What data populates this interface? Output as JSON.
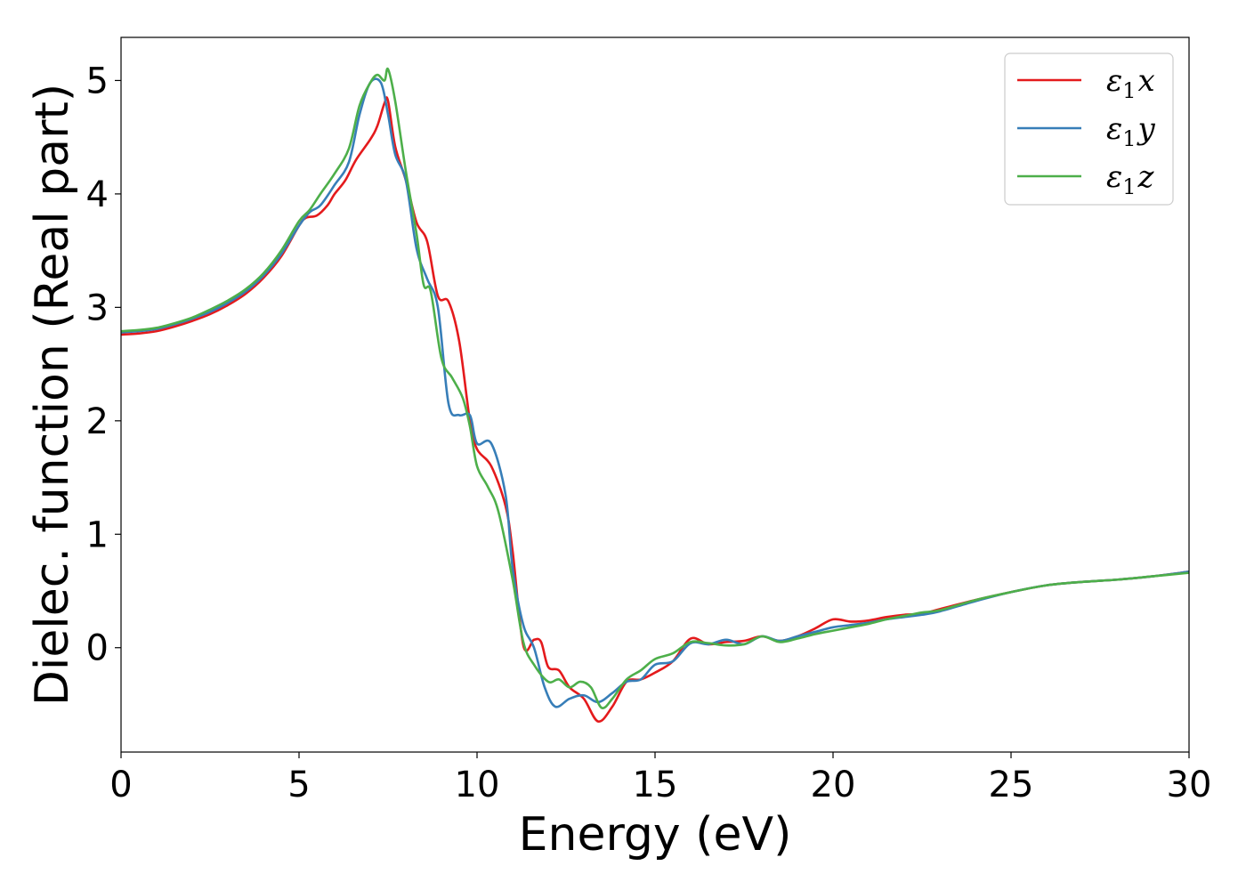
{
  "chart_data": {
    "type": "line",
    "title": "",
    "xlabel": "Energy (eV)",
    "ylabel": "Dielec. function (Real part)",
    "xlim": [
      0,
      30
    ],
    "ylim": [
      -0.92,
      5.38
    ],
    "xticks": [
      0,
      5,
      10,
      15,
      20,
      25,
      30
    ],
    "xtick_labels": [
      "0",
      "5",
      "10",
      "15",
      "20",
      "25",
      "30"
    ],
    "yticks": [
      0,
      1,
      2,
      3,
      4,
      5
    ],
    "ytick_labels": [
      "0",
      "1",
      "2",
      "3",
      "4",
      "5"
    ],
    "grid": false,
    "legend_position": "top-right",
    "series": [
      {
        "name": "ε₁x",
        "legend_base": "ε",
        "legend_sub": "1",
        "legend_var": "x",
        "color": "#e41a1c",
        "x": [
          0,
          0.5,
          1,
          1.5,
          2,
          2.5,
          3,
          3.5,
          4,
          4.5,
          5,
          5.2,
          5.5,
          5.8,
          6,
          6.3,
          6.6,
          7,
          7.2,
          7.4,
          7.5,
          7.7,
          8,
          8.3,
          8.6,
          8.9,
          9.2,
          9.5,
          9.8,
          10,
          10.4,
          10.8,
          11,
          11.3,
          11.6,
          11.8,
          12,
          12.3,
          12.6,
          13,
          13.4,
          13.8,
          14.2,
          14.6,
          15,
          15.5,
          16,
          16.5,
          17,
          17.5,
          18,
          18.5,
          19,
          19.5,
          20,
          20.5,
          21,
          21.5,
          22,
          22.5,
          23,
          24,
          25,
          26,
          27,
          28,
          29,
          30
        ],
        "y": [
          2.76,
          2.77,
          2.79,
          2.83,
          2.88,
          2.94,
          3.02,
          3.12,
          3.26,
          3.45,
          3.72,
          3.79,
          3.81,
          3.9,
          4.0,
          4.12,
          4.3,
          4.48,
          4.6,
          4.8,
          4.82,
          4.42,
          4.12,
          3.75,
          3.58,
          3.1,
          3.05,
          2.7,
          2.0,
          1.75,
          1.6,
          1.25,
          0.85,
          0.02,
          0.07,
          0.05,
          -0.17,
          -0.2,
          -0.35,
          -0.45,
          -0.65,
          -0.52,
          -0.3,
          -0.28,
          -0.22,
          -0.12,
          0.08,
          0.03,
          0.05,
          0.06,
          0.1,
          0.06,
          0.1,
          0.17,
          0.25,
          0.23,
          0.24,
          0.27,
          0.29,
          0.3,
          0.34,
          0.42,
          0.49,
          0.55,
          0.58,
          0.6,
          0.63,
          0.67
        ]
      },
      {
        "name": "ε₁y",
        "legend_base": "ε",
        "legend_sub": "1",
        "legend_var": "y",
        "color": "#377eb8",
        "x": [
          0,
          0.5,
          1,
          1.5,
          2,
          2.5,
          3,
          3.5,
          4,
          4.5,
          5,
          5.3,
          5.6,
          6,
          6.4,
          6.7,
          7,
          7.3,
          7.5,
          7.7,
          8,
          8.3,
          8.6,
          8.9,
          9.2,
          9.5,
          9.8,
          10,
          10.4,
          10.8,
          11,
          11.3,
          11.6,
          11.9,
          12.2,
          12.6,
          13,
          13.4,
          13.8,
          14.2,
          14.6,
          15,
          15.5,
          16,
          16.5,
          17,
          17.5,
          18,
          18.5,
          19,
          19.5,
          20,
          20.5,
          21,
          21.5,
          22,
          22.5,
          23,
          24,
          25,
          26,
          27,
          28,
          29,
          30
        ],
        "y": [
          2.78,
          2.79,
          2.81,
          2.85,
          2.9,
          2.96,
          3.04,
          3.14,
          3.28,
          3.47,
          3.72,
          3.84,
          3.9,
          4.08,
          4.28,
          4.7,
          4.98,
          4.98,
          4.7,
          4.35,
          4.12,
          3.52,
          3.25,
          3.0,
          2.15,
          2.05,
          2.05,
          1.8,
          1.8,
          1.35,
          0.7,
          0.2,
          0.0,
          -0.35,
          -0.52,
          -0.45,
          -0.42,
          -0.48,
          -0.4,
          -0.3,
          -0.28,
          -0.15,
          -0.12,
          0.04,
          0.03,
          0.07,
          0.03,
          0.1,
          0.06,
          0.1,
          0.14,
          0.18,
          0.2,
          0.22,
          0.25,
          0.27,
          0.29,
          0.32,
          0.41,
          0.49,
          0.55,
          0.58,
          0.6,
          0.63,
          0.67
        ]
      },
      {
        "name": "ε₁z",
        "legend_base": "ε",
        "legend_sub": "1",
        "legend_var": "z",
        "color": "#4daf4a",
        "x": [
          0,
          0.5,
          1,
          1.5,
          2,
          2.5,
          3,
          3.5,
          4,
          4.5,
          5,
          5.3,
          5.6,
          6,
          6.4,
          6.7,
          7,
          7.2,
          7.4,
          7.5,
          7.7,
          8,
          8.3,
          8.5,
          8.7,
          9.0,
          9.3,
          9.6,
          9.8,
          10,
          10.3,
          10.6,
          11,
          11.3,
          11.6,
          12,
          12.3,
          12.6,
          12.9,
          13.2,
          13.5,
          13.8,
          14.2,
          14.6,
          15,
          15.5,
          16,
          16.5,
          17,
          17.5,
          18,
          18.5,
          19,
          19.5,
          20,
          20.5,
          21,
          21.5,
          22,
          22.5,
          23,
          24,
          25,
          26,
          27,
          28,
          29,
          30
        ],
        "y": [
          2.79,
          2.8,
          2.82,
          2.86,
          2.91,
          2.98,
          3.06,
          3.16,
          3.3,
          3.5,
          3.76,
          3.86,
          4.0,
          4.18,
          4.4,
          4.78,
          4.98,
          5.05,
          5.0,
          5.1,
          4.82,
          4.2,
          3.65,
          3.2,
          3.14,
          2.55,
          2.38,
          2.2,
          1.95,
          1.6,
          1.42,
          1.2,
          0.6,
          0.05,
          -0.15,
          -0.3,
          -0.28,
          -0.35,
          -0.3,
          -0.35,
          -0.53,
          -0.45,
          -0.28,
          -0.2,
          -0.1,
          -0.05,
          0.05,
          0.04,
          0.02,
          0.03,
          0.1,
          0.05,
          0.08,
          0.12,
          0.15,
          0.18,
          0.21,
          0.25,
          0.28,
          0.31,
          0.33,
          0.42,
          0.49,
          0.55,
          0.58,
          0.6,
          0.63,
          0.66
        ]
      }
    ]
  }
}
